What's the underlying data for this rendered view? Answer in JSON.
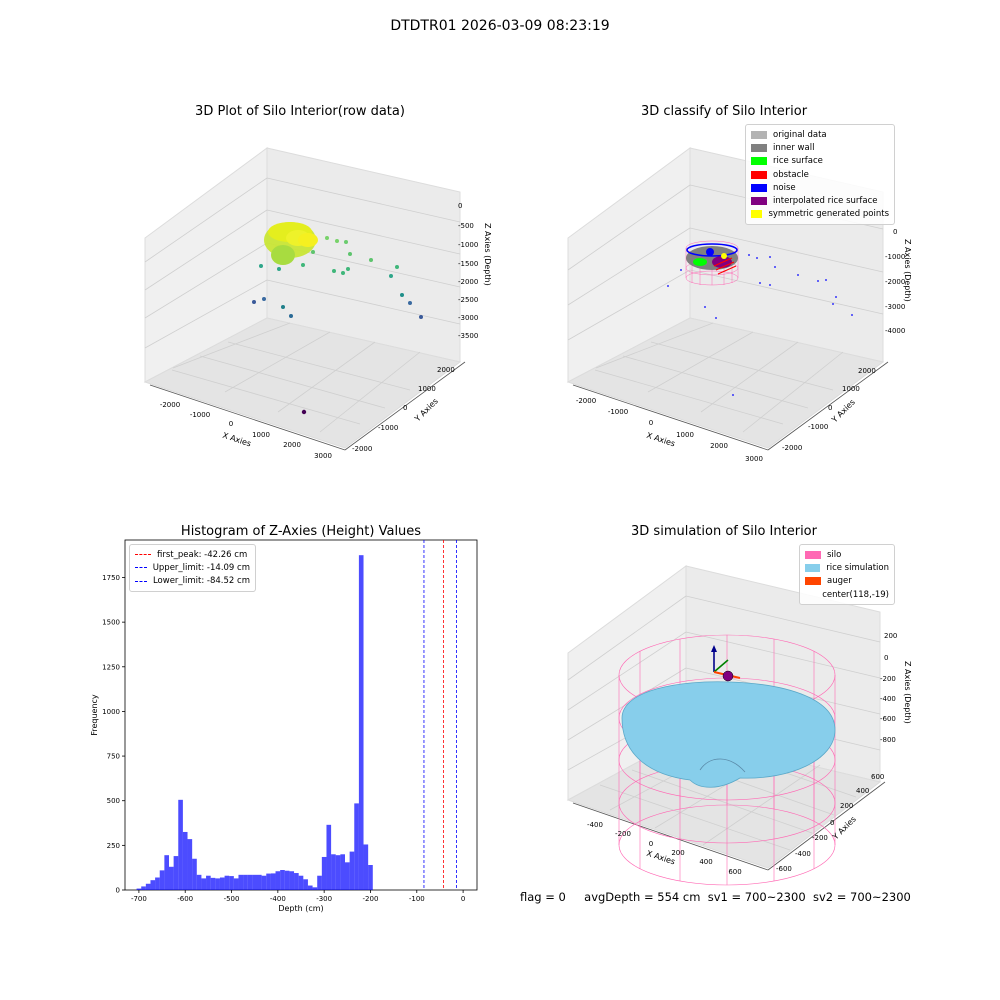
{
  "title": "DTDTR01 2026-03-09 08:23:19",
  "footer": {
    "flag": "flag = 0",
    "avg_depth": "avgDepth = 554 cm",
    "sv1": "sv1 = 700~2300",
    "sv2": "sv2 = 700~2300"
  },
  "chart_data": [
    {
      "type": "scatter",
      "subtype": "3d",
      "title": "3D Plot of Silo Interior(row data)",
      "xlabel": "X Axies",
      "ylabel": "Y Axies",
      "zlabel": "Z Axies (Depth)",
      "x_ticks": [
        "-2000",
        "-1000",
        "0",
        "1000",
        "2000",
        "3000"
      ],
      "y_ticks": [
        "-2000",
        "-1000",
        "0",
        "1000",
        "2000"
      ],
      "z_ticks": [
        "0",
        "-500",
        "-1000",
        "-1500",
        "-2000",
        "-2500",
        "-3000",
        "-3500"
      ]
    },
    {
      "type": "scatter",
      "subtype": "3d",
      "title": "3D classify of Silo Interior",
      "xlabel": "X Axies",
      "ylabel": "Y Axies",
      "zlabel": "Z Axies (Depth)",
      "x_ticks": [
        "-2000",
        "-1000",
        "0",
        "1000",
        "2000",
        "3000"
      ],
      "y_ticks": [
        "-2000",
        "-1000",
        "0",
        "1000",
        "2000"
      ],
      "z_ticks": [
        "0",
        "-1000",
        "-2000",
        "-3000",
        "-4000"
      ],
      "legend": [
        {
          "label": "original data",
          "color": "#b3b3b3"
        },
        {
          "label": "inner wall",
          "color": "#808080"
        },
        {
          "label": "rice surface",
          "color": "#00ff00"
        },
        {
          "label": "obstacle",
          "color": "#ff0000"
        },
        {
          "label": "noise",
          "color": "#0000ff"
        },
        {
          "label": "interpolated rice surface",
          "color": "#800080"
        },
        {
          "label": "symmetric generated points",
          "color": "#ffff00"
        }
      ],
      "legend_position": "top-right"
    },
    {
      "type": "bar",
      "subtype": "histogram",
      "title": "Histogram of Z-Axies (Height) Values",
      "xlabel": "Depth (cm)",
      "ylabel": "Frequency",
      "xlim": [
        -730,
        30
      ],
      "ylim": [
        0,
        1960
      ],
      "x_ticks": [
        -700,
        -600,
        -500,
        -400,
        -300,
        -200,
        -100,
        0
      ],
      "y_ticks": [
        0,
        250,
        500,
        750,
        1000,
        1250,
        1500,
        1750
      ],
      "bin_start": -705,
      "bin_width": 10,
      "values": [
        8,
        20,
        35,
        55,
        70,
        110,
        195,
        130,
        190,
        505,
        325,
        285,
        175,
        85,
        65,
        80,
        68,
        65,
        70,
        80,
        78,
        65,
        85,
        85,
        85,
        85,
        85,
        80,
        92,
        93,
        105,
        112,
        108,
        105,
        95,
        80,
        60,
        25,
        15,
        80,
        185,
        365,
        200,
        195,
        200,
        155,
        215,
        485,
        1875,
        255,
        140
      ],
      "bar_color": "#0000ff",
      "lines": [
        {
          "label": "first_peak: -42.26 cm",
          "value": -42.26,
          "color": "#ff0000"
        },
        {
          "label": "Upper_limit: -14.09 cm",
          "value": -14.09,
          "color": "#0000ff"
        },
        {
          "label": "Lower_limit: -84.52 cm",
          "value": -84.52,
          "color": "#0000ff"
        }
      ],
      "legend_position": "top-left"
    },
    {
      "type": "surface",
      "subtype": "3d",
      "title": "3D simulation of Silo Interior",
      "xlabel": "X Axies",
      "ylabel": "Y Axies",
      "zlabel": "Z Axies (Depth)",
      "x_ticks": [
        "-400",
        "-200",
        "0",
        "200",
        "400",
        "600"
      ],
      "y_ticks": [
        "-600",
        "-400",
        "-200",
        "0",
        "200",
        "400",
        "600"
      ],
      "z_ticks": [
        "200",
        "0",
        "-200",
        "-400",
        "-600",
        "-800"
      ],
      "legend": [
        {
          "label": "silo",
          "color": "#ff69b4"
        },
        {
          "label": "rice simulation",
          "color": "#87ceeb"
        },
        {
          "label": "auger",
          "color": "#ff4500"
        },
        {
          "label": "center(118,-19)",
          "color": ""
        }
      ],
      "legend_position": "top-right"
    }
  ]
}
